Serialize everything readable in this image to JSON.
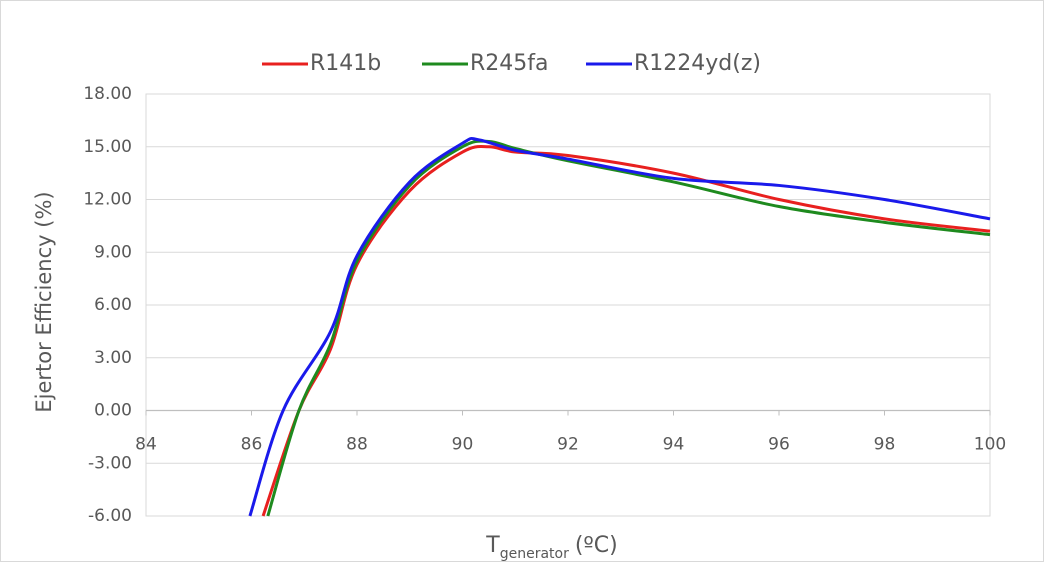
{
  "chart_data": {
    "type": "line",
    "y_label": "Ejertor Efficiency (%)",
    "x_label": {
      "main": "T",
      "sub": "generator",
      "unit": "(ºC)"
    },
    "xlim": [
      84,
      100
    ],
    "xticks": [
      84,
      86,
      88,
      90,
      92,
      94,
      96,
      98,
      100
    ],
    "ylim": [
      -6,
      18
    ],
    "yticks": [
      {
        "value": -6,
        "label": "-6.00"
      },
      {
        "value": -3,
        "label": "-3.00"
      },
      {
        "value": 0,
        "label": "0.00"
      },
      {
        "value": 3,
        "label": "3.00"
      },
      {
        "value": 6,
        "label": "6.00"
      },
      {
        "value": 9,
        "label": "9.00"
      },
      {
        "value": 12,
        "label": "12.00"
      },
      {
        "value": 15,
        "label": "15.00"
      },
      {
        "value": 18,
        "label": "18.00"
      }
    ],
    "grid": true,
    "legend": "top",
    "series": [
      {
        "name": "R141b",
        "color": "#e8201f",
        "x": [
          86.22,
          86.9,
          87.5,
          88,
          89,
          90,
          90.5,
          91,
          92,
          94,
          96,
          98,
          100
        ],
        "values": [
          -6,
          0,
          3.5,
          8.3,
          12.5,
          14.7,
          15.0,
          14.7,
          14.5,
          13.5,
          12.0,
          10.9,
          10.2
        ]
      },
      {
        "name": "R245fa",
        "color": "#1e8a1e",
        "x": [
          86.31,
          86.9,
          87.5,
          88,
          89,
          90,
          90.5,
          91,
          92,
          94,
          96,
          98,
          100
        ],
        "values": [
          -6,
          0,
          3.8,
          8.5,
          12.8,
          15.0,
          15.3,
          14.9,
          14.2,
          13.0,
          11.6,
          10.7,
          10.0
        ]
      },
      {
        "name": "R1224yd(z)",
        "color": "#1a1aeb",
        "x": [
          85.97,
          86.6,
          87.5,
          88,
          89,
          90,
          90.3,
          91,
          92,
          94,
          96,
          98,
          100
        ],
        "values": [
          -6,
          0,
          4.5,
          8.8,
          13.0,
          15.2,
          15.4,
          14.8,
          14.3,
          13.2,
          12.8,
          12.0,
          10.9
        ]
      }
    ]
  }
}
